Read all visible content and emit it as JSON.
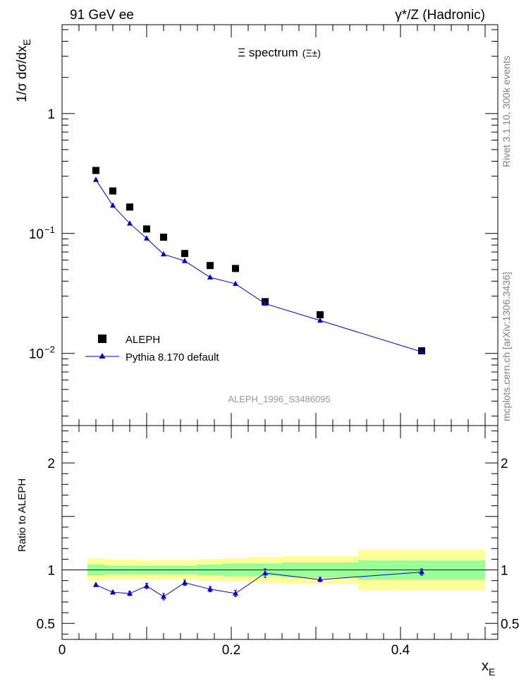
{
  "header": {
    "left": "91 GeV ee",
    "right": "γ*/Z (Hadronic)"
  },
  "side_labels": {
    "top": "Rivet 3.1.10,  300k events",
    "bottom": "mcplots.cern.ch [arXiv:1306.3436]"
  },
  "colors": {
    "data": "#000000",
    "mc": "#0000cc",
    "band_outer": "#ffff99",
    "band_inner": "#99ff99",
    "watermark": "#999999"
  },
  "chart_data": [
    {
      "type": "scatter",
      "title_main": "Ξ spectrum",
      "title_sub": "(Ξ±)",
      "ylabel": "1/σ dσ/dx",
      "ylabel_sub": "E",
      "yscale": "log",
      "ylim": [
        0.0025,
        5.5
      ],
      "xlim": [
        0,
        0.515
      ],
      "y_ticks": [
        {
          "value": 1,
          "label": "1"
        },
        {
          "value": 0.1,
          "label": "10",
          "sup": "−1"
        },
        {
          "value": 0.01,
          "label": "10",
          "sup": "−2"
        }
      ],
      "watermark": "ALEPH_1996_S3486095",
      "legend": [
        {
          "name": "ALEPH",
          "marker": "square"
        },
        {
          "name": "Pythia 8.170 default",
          "marker": "triangle-line"
        }
      ],
      "series": [
        {
          "name": "ALEPH",
          "x": [
            0.04,
            0.06,
            0.08,
            0.1,
            0.12,
            0.145,
            0.175,
            0.205,
            0.24,
            0.305,
            0.425
          ],
          "y": [
            0.335,
            0.226,
            0.166,
            0.109,
            0.093,
            0.068,
            0.054,
            0.051,
            0.027,
            0.021,
            0.0105
          ]
        },
        {
          "name": "Pythia 8.170 default",
          "x": [
            0.04,
            0.06,
            0.08,
            0.1,
            0.12,
            0.145,
            0.175,
            0.205,
            0.24,
            0.305,
            0.425
          ],
          "y": [
            0.28,
            0.171,
            0.121,
            0.091,
            0.067,
            0.059,
            0.043,
            0.038,
            0.026,
            0.0188,
            0.0103
          ]
        }
      ]
    },
    {
      "type": "scatter",
      "ylabel": "Ratio to ALEPH",
      "xlabel": "x",
      "xlabel_sub": "E",
      "ylim": [
        0.35,
        2.35
      ],
      "xlim": [
        0,
        0.515
      ],
      "x_ticks": [
        {
          "value": 0,
          "label": "0"
        },
        {
          "value": 0.2,
          "label": "0.2"
        },
        {
          "value": 0.4,
          "label": "0.4"
        }
      ],
      "y_ticks": [
        {
          "value": 0.5,
          "label": "0.5"
        },
        {
          "value": 1,
          "label": "1"
        },
        {
          "value": 2,
          "label": "2"
        }
      ],
      "bands": [
        {
          "x0": 0.03,
          "x1": 0.05,
          "outer": [
            0.9,
            1.11
          ],
          "inner": [
            0.95,
            1.05
          ]
        },
        {
          "x0": 0.05,
          "x1": 0.07,
          "outer": [
            0.91,
            1.1
          ],
          "inner": [
            0.96,
            1.04
          ]
        },
        {
          "x0": 0.07,
          "x1": 0.09,
          "outer": [
            0.91,
            1.1
          ],
          "inner": [
            0.96,
            1.04
          ]
        },
        {
          "x0": 0.09,
          "x1": 0.11,
          "outer": [
            0.91,
            1.09
          ],
          "inner": [
            0.96,
            1.04
          ]
        },
        {
          "x0": 0.11,
          "x1": 0.13,
          "outer": [
            0.91,
            1.09
          ],
          "inner": [
            0.96,
            1.04
          ]
        },
        {
          "x0": 0.13,
          "x1": 0.16,
          "outer": [
            0.91,
            1.09
          ],
          "inner": [
            0.96,
            1.04
          ]
        },
        {
          "x0": 0.16,
          "x1": 0.19,
          "outer": [
            0.9,
            1.1
          ],
          "inner": [
            0.95,
            1.05
          ]
        },
        {
          "x0": 0.19,
          "x1": 0.22,
          "outer": [
            0.89,
            1.11
          ],
          "inner": [
            0.94,
            1.06
          ]
        },
        {
          "x0": 0.22,
          "x1": 0.26,
          "outer": [
            0.88,
            1.12
          ],
          "inner": [
            0.94,
            1.06
          ]
        },
        {
          "x0": 0.26,
          "x1": 0.35,
          "outer": [
            0.87,
            1.13
          ],
          "inner": [
            0.93,
            1.07
          ]
        },
        {
          "x0": 0.35,
          "x1": 0.5,
          "outer": [
            0.81,
            1.19
          ],
          "inner": [
            0.91,
            1.09
          ]
        }
      ],
      "series": [
        {
          "name": "Pythia 8.170 default / ALEPH",
          "x": [
            0.04,
            0.06,
            0.08,
            0.1,
            0.12,
            0.145,
            0.175,
            0.205,
            0.24,
            0.305,
            0.425
          ],
          "y": [
            0.86,
            0.79,
            0.78,
            0.85,
            0.75,
            0.88,
            0.82,
            0.78,
            0.97,
            0.91,
            0.98
          ],
          "err": [
            0.01,
            0.015,
            0.02,
            0.025,
            0.03,
            0.025,
            0.025,
            0.03,
            0.04,
            0.02,
            0.03
          ]
        }
      ]
    }
  ]
}
